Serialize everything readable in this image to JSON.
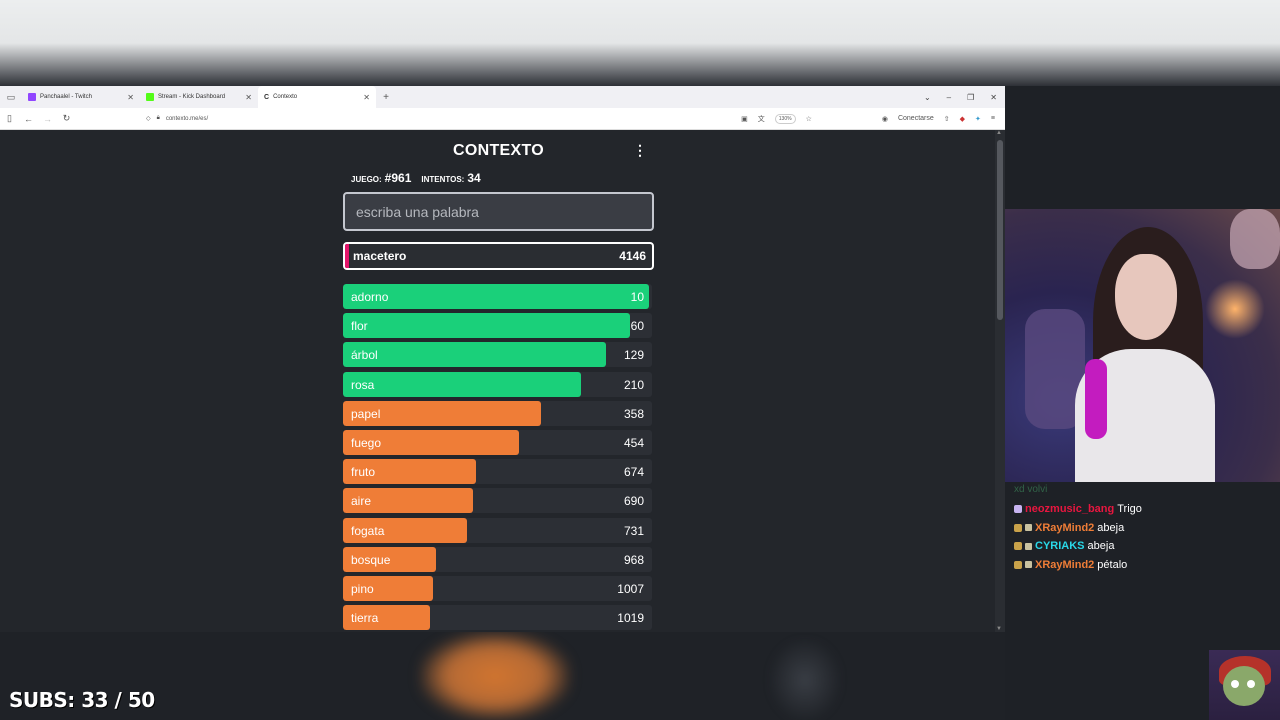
{
  "browser": {
    "tabs": [
      {
        "label": "Panchaalel - Twitch",
        "favicon_color": "#9146ff",
        "active": false
      },
      {
        "label": "Stream - Kick Dashboard",
        "favicon_color": "#53fc18",
        "active": false
      },
      {
        "label": "Contexto",
        "favicon_color": "#333333",
        "active": true
      }
    ],
    "new_tab": "+",
    "url": "contexto.me/es/",
    "zoom": "130%",
    "account_label": "Conectarse"
  },
  "game": {
    "title": "CONTEXTO",
    "game_label": "JUEGO:",
    "game_number": "#961",
    "attempts_label": "INTENTOS:",
    "attempts": "34",
    "input_placeholder": "escriba una palabra",
    "last_guess": {
      "word": "macetero",
      "rank": "4146"
    },
    "guesses": [
      {
        "word": "adorno",
        "rank": "10",
        "fill": 0.99,
        "color": "#1ad07a"
      },
      {
        "word": "flor",
        "rank": "60",
        "fill": 0.93,
        "color": "#1ad07a"
      },
      {
        "word": "árbol",
        "rank": "129",
        "fill": 0.85,
        "color": "#1ad07a"
      },
      {
        "word": "rosa",
        "rank": "210",
        "fill": 0.77,
        "color": "#1ad07a"
      },
      {
        "word": "papel",
        "rank": "358",
        "fill": 0.64,
        "color": "#ef7d37"
      },
      {
        "word": "fuego",
        "rank": "454",
        "fill": 0.57,
        "color": "#ef7d37"
      },
      {
        "word": "fruto",
        "rank": "674",
        "fill": 0.43,
        "color": "#ef7d37"
      },
      {
        "word": "aire",
        "rank": "690",
        "fill": 0.42,
        "color": "#ef7d37"
      },
      {
        "word": "fogata",
        "rank": "731",
        "fill": 0.4,
        "color": "#ef7d37"
      },
      {
        "word": "bosque",
        "rank": "968",
        "fill": 0.3,
        "color": "#ef7d37"
      },
      {
        "word": "pino",
        "rank": "1007",
        "fill": 0.29,
        "color": "#ef7d37"
      },
      {
        "word": "tierra",
        "rank": "1019",
        "fill": 0.28,
        "color": "#ef7d37"
      }
    ]
  },
  "chat": {
    "faded_line": "xd volvi",
    "messages": [
      {
        "user": "neozmusic_bang",
        "text": "Trigo",
        "color": "#e8163f"
      },
      {
        "user": "XRayMind2",
        "text": "abeja",
        "color": "#ef7d37"
      },
      {
        "user": "CYRIAKS",
        "text": "abeja",
        "color": "#29d8e8"
      },
      {
        "user": "XRayMind2",
        "text": "pétalo",
        "color": "#ef7d37"
      }
    ]
  },
  "overlay": {
    "subs": "SUBS: 33 / 50"
  }
}
